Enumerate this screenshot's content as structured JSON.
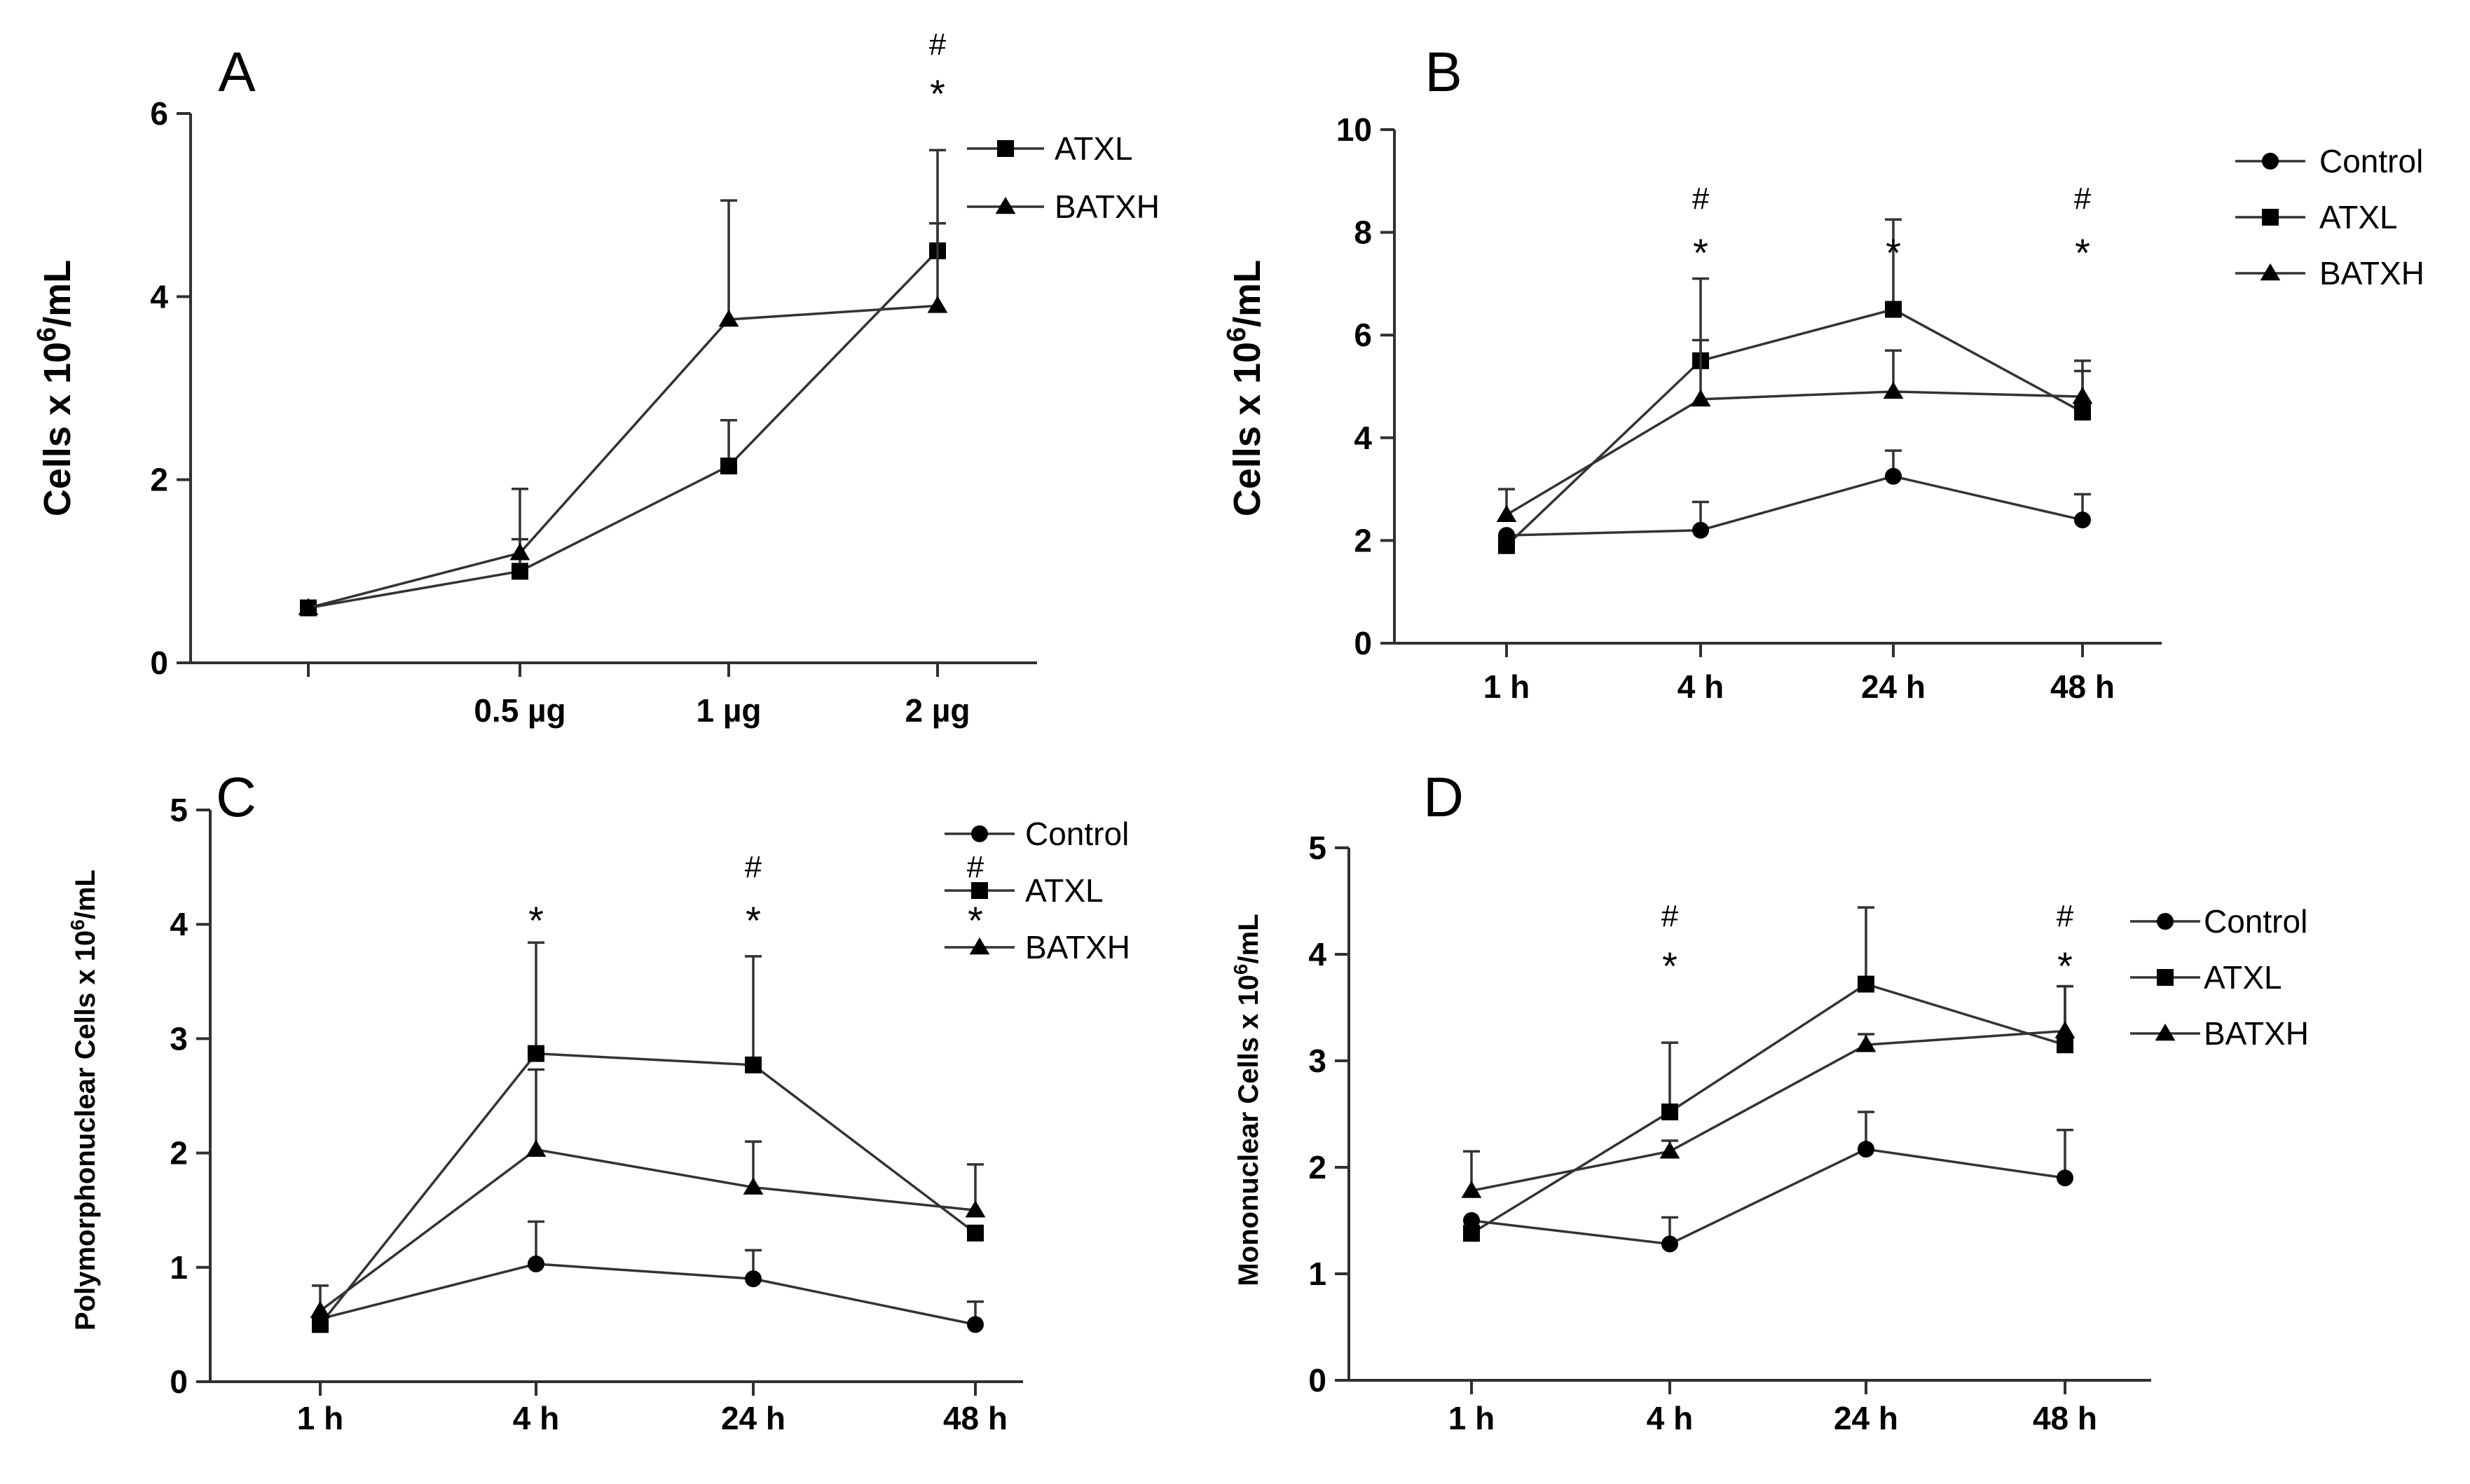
{
  "chart_data": [
    {
      "panel": "A",
      "type": "line",
      "ylabel": "Cells x 10",
      "ylabel_sup": "6",
      "ylabel_suffix": "/mL",
      "ylim": [
        0,
        6
      ],
      "yticks": [
        "0",
        "2",
        "4",
        "6"
      ],
      "categories": [
        "",
        "0.5 µg",
        "1 µg",
        "2 µg"
      ],
      "series": [
        {
          "name": "ATXL",
          "marker": "square",
          "values": [
            0.6,
            1.0,
            2.15,
            4.5
          ],
          "err": [
            0.05,
            0.35,
            0.5,
            1.1
          ]
        },
        {
          "name": "BATXH",
          "marker": "triangle",
          "values": [
            0.6,
            1.2,
            3.75,
            3.9
          ],
          "err": [
            0.05,
            0.7,
            1.3,
            0.9
          ]
        }
      ],
      "annotations": [
        {
          "category": 3,
          "text": "*",
          "hash": "#"
        }
      ]
    },
    {
      "panel": "B",
      "type": "line",
      "ylabel": "Cells x 10",
      "ylabel_sup": "6",
      "ylabel_suffix": "/mL",
      "ylim": [
        0,
        10
      ],
      "yticks": [
        "0",
        "2",
        "4",
        "6",
        "8",
        "10"
      ],
      "categories": [
        "1 h",
        "4 h",
        "24 h",
        "48 h"
      ],
      "series": [
        {
          "name": "Control",
          "marker": "circle",
          "values": [
            2.1,
            2.2,
            3.25,
            2.4
          ],
          "err": [
            0.05,
            0.55,
            0.5,
            0.5
          ]
        },
        {
          "name": "ATXL",
          "marker": "square",
          "values": [
            1.9,
            5.5,
            6.5,
            4.5
          ],
          "err": [
            0.05,
            1.6,
            1.75,
            1.0
          ]
        },
        {
          "name": "BATXH",
          "marker": "triangle",
          "values": [
            2.5,
            4.75,
            4.9,
            4.8
          ],
          "err": [
            0.5,
            1.15,
            0.8,
            0.5
          ]
        }
      ],
      "annotations": [
        {
          "category": 1,
          "text": "*",
          "hash": "#"
        },
        {
          "category": 2,
          "text": "*",
          "hash": ""
        },
        {
          "category": 3,
          "text": "*",
          "hash": "#"
        }
      ]
    },
    {
      "panel": "C",
      "type": "line",
      "ylabel": "Polymorphonuclear Cells x 10",
      "ylabel_sup": "6",
      "ylabel_suffix": "/mL",
      "ylim": [
        0,
        5
      ],
      "yticks": [
        "0",
        "1",
        "2",
        "3",
        "4",
        "5"
      ],
      "categories": [
        "1 h",
        "4 h",
        "24 h",
        "48 h"
      ],
      "series": [
        {
          "name": "Control",
          "marker": "circle",
          "values": [
            0.55,
            1.03,
            0.9,
            0.5
          ],
          "err": [
            0.05,
            0.37,
            0.25,
            0.2
          ]
        },
        {
          "name": "ATXL",
          "marker": "square",
          "values": [
            0.5,
            2.87,
            2.77,
            1.3
          ],
          "err": [
            0.05,
            0.97,
            0.95,
            0.0
          ]
        },
        {
          "name": "BATXH",
          "marker": "triangle",
          "values": [
            0.62,
            2.03,
            1.7,
            1.5
          ],
          "err": [
            0.22,
            0.7,
            0.4,
            0.4
          ]
        }
      ],
      "annotations": [
        {
          "category": 1,
          "text": "*",
          "hash": ""
        },
        {
          "category": 2,
          "text": "*",
          "hash": "#"
        },
        {
          "category": 3,
          "text": "*",
          "hash": "#"
        }
      ]
    },
    {
      "panel": "D",
      "type": "line",
      "ylabel": "Mononuclear Cells x 10",
      "ylabel_sup": "6",
      "ylabel_suffix": "/mL",
      "ylim": [
        0,
        5
      ],
      "yticks": [
        "0",
        "1",
        "2",
        "3",
        "4",
        "5"
      ],
      "categories": [
        "1 h",
        "4 h",
        "24 h",
        "48 h"
      ],
      "series": [
        {
          "name": "Control",
          "marker": "circle",
          "values": [
            1.5,
            1.28,
            2.17,
            1.9
          ],
          "err": [
            0.05,
            0.25,
            0.35,
            0.45
          ]
        },
        {
          "name": "ATXL",
          "marker": "square",
          "values": [
            1.38,
            2.52,
            3.72,
            3.15
          ],
          "err": [
            0.05,
            0.65,
            0.72,
            0.55
          ]
        },
        {
          "name": "BATXH",
          "marker": "triangle",
          "values": [
            1.78,
            2.15,
            3.15,
            3.28
          ],
          "err": [
            0.37,
            0.1,
            0.1,
            0.42
          ]
        }
      ],
      "annotations": [
        {
          "category": 1,
          "text": "*",
          "hash": "#"
        },
        {
          "category": 3,
          "text": "*",
          "hash": "#"
        }
      ]
    }
  ]
}
